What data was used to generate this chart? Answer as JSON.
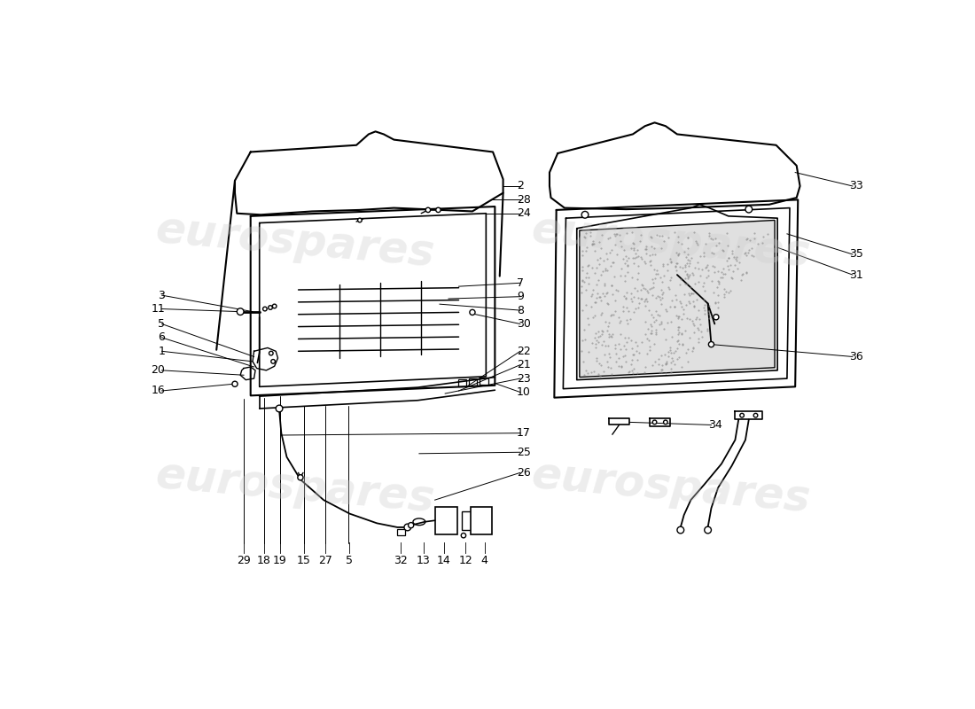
{
  "bg_color": "#ffffff",
  "line_color": "#000000",
  "watermark_text": "eurospares",
  "watermark_color": "#cccccc",
  "left_part_labels": [
    [
      "2",
      570,
      148
    ],
    [
      "28",
      570,
      168
    ],
    [
      "24",
      570,
      188
    ],
    [
      "7",
      570,
      288
    ],
    [
      "9",
      570,
      308
    ],
    [
      "8",
      570,
      328
    ],
    [
      "30",
      570,
      348
    ],
    [
      "22",
      570,
      388
    ],
    [
      "21",
      570,
      408
    ],
    [
      "23",
      570,
      428
    ],
    [
      "10",
      570,
      448
    ],
    [
      "17",
      570,
      508
    ],
    [
      "25",
      570,
      538
    ],
    [
      "26",
      570,
      568
    ],
    [
      "3",
      65,
      308
    ],
    [
      "11",
      65,
      328
    ],
    [
      "5",
      65,
      348
    ],
    [
      "6",
      65,
      368
    ],
    [
      "1",
      65,
      388
    ],
    [
      "20",
      65,
      418
    ],
    [
      "16",
      65,
      448
    ]
  ],
  "bottom_labels": [
    [
      "29",
      175,
      688
    ],
    [
      "18",
      205,
      688
    ],
    [
      "19",
      228,
      688
    ],
    [
      "15",
      263,
      688
    ],
    [
      "27",
      295,
      688
    ],
    [
      "5",
      330,
      688
    ],
    [
      "32",
      405,
      688
    ],
    [
      "13",
      438,
      688
    ],
    [
      "14",
      468,
      688
    ],
    [
      "12",
      500,
      688
    ],
    [
      "4",
      528,
      688
    ]
  ],
  "right_part_labels": [
    [
      "33",
      1058,
      148
    ],
    [
      "35",
      1058,
      248
    ],
    [
      "31",
      1058,
      278
    ],
    [
      "36",
      1058,
      398
    ],
    [
      "34",
      858,
      498
    ]
  ]
}
